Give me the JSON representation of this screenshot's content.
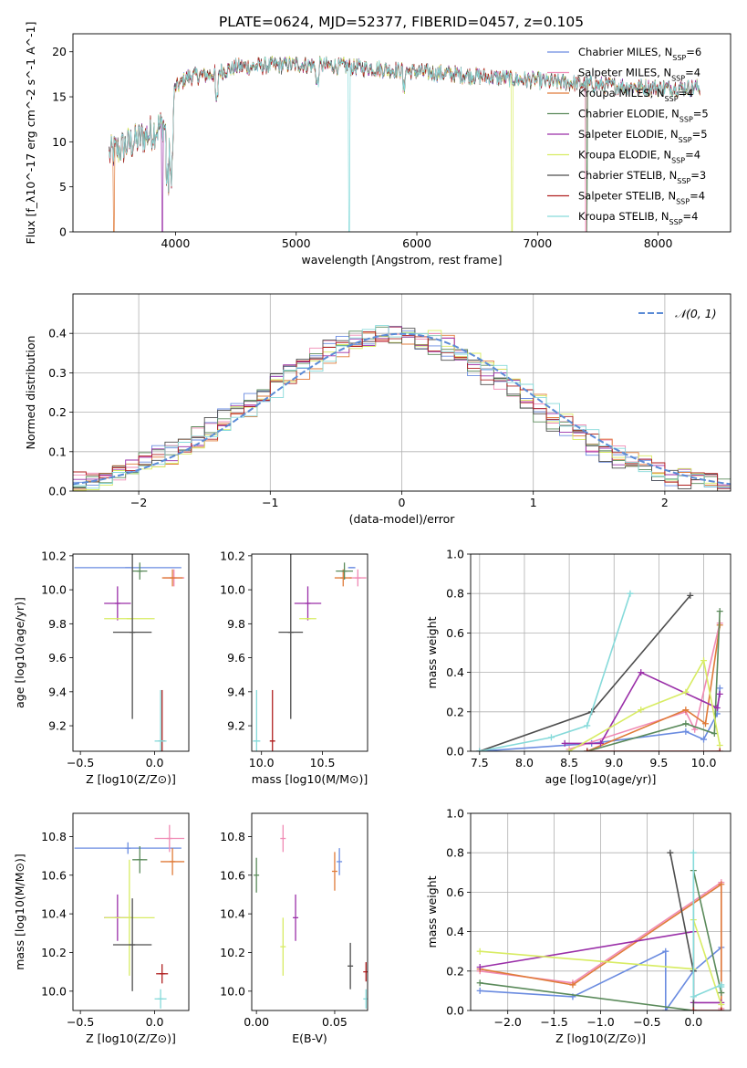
{
  "title": "PLATE=0624, MJD=52377, FIBERID=0457, z=0.105",
  "colors": [
    "#6a8be0",
    "#f08ab4",
    "#e07b39",
    "#5a8a5a",
    "#9a2fa8",
    "#d8ec63",
    "#4d4d4d",
    "#b02020",
    "#86dada"
  ],
  "chart_data": [
    {
      "type": "line",
      "panel": "spectrum",
      "xlabel": "wavelength [Angstrom, rest frame]",
      "ylabel": "Flux [f_λ10^-17 erg cm^-2 s^-1 A^-1]",
      "xlim": [
        3150,
        8600
      ],
      "ylim": [
        0,
        22
      ],
      "xticks": [
        4000,
        5000,
        6000,
        7000,
        8000
      ],
      "yticks": [
        0,
        5,
        10,
        15,
        20
      ],
      "grid": false,
      "legend_position": "top-right",
      "series": [
        {
          "name": "Chabrier MILES, N_SSP=6",
          "color": "#6a8be0"
        },
        {
          "name": "Salpeter MILES, N_SSP=4",
          "color": "#f08ab4"
        },
        {
          "name": "Kroupa MILES, N_SSP=4",
          "color": "#e07b39"
        },
        {
          "name": "Chabrier ELODIE, N_SSP=5",
          "color": "#5a8a5a"
        },
        {
          "name": "Salpeter ELODIE, N_SSP=5",
          "color": "#9a2fa8"
        },
        {
          "name": "Kroupa ELODIE, N_SSP=4",
          "color": "#d8ec63"
        },
        {
          "name": "Chabrier STELIB, N_SSP=3",
          "color": "#4d4d4d"
        },
        {
          "name": "Salpeter STELIB, N_SSP=4",
          "color": "#b02020"
        },
        {
          "name": "Kroupa STELIB, N_SSP=4",
          "color": "#86dada"
        }
      ],
      "continuum": [
        [
          3450,
          8.6
        ],
        [
          3650,
          10
        ],
        [
          3800,
          11
        ],
        [
          3900,
          12
        ],
        [
          3950,
          10
        ],
        [
          4000,
          16
        ],
        [
          4100,
          17.2
        ],
        [
          4300,
          17.5
        ],
        [
          4500,
          18.3
        ],
        [
          5000,
          18.6
        ],
        [
          5500,
          18.3
        ],
        [
          6000,
          17.8
        ],
        [
          6500,
          17.3
        ],
        [
          7000,
          16.8
        ],
        [
          7500,
          16.3
        ],
        [
          8000,
          16.0
        ],
        [
          8350,
          16.0
        ]
      ]
    },
    {
      "type": "line",
      "panel": "residual_histogram",
      "xlabel": "(data-model)/error",
      "ylabel": "Normed distribution",
      "xlim": [
        -2.5,
        2.5
      ],
      "ylim": [
        0,
        0.5
      ],
      "xticks": [
        -2,
        -1,
        0,
        1,
        2
      ],
      "yticks": [
        0.0,
        0.1,
        0.2,
        0.3,
        0.4
      ],
      "grid": true,
      "legend": "𝒩(0, 1)",
      "legend_position": "top-right",
      "gaussian": {
        "mean": 0,
        "sigma": 1
      }
    },
    {
      "type": "scatter",
      "panel": "age_vs_Z",
      "xlabel": "Z [log10(Z/Z⊙)]",
      "ylabel": "age [log10(age/yr)]",
      "xlim": [
        -0.55,
        0.23
      ],
      "ylim": [
        9.05,
        10.21
      ],
      "xticks": [
        -0.5,
        0.0
      ],
      "yticks": [
        9.2,
        9.4,
        9.6,
        9.8,
        10.0,
        10.2
      ],
      "points": [
        {
          "x": -0.18,
          "y": 10.13,
          "xerr": 0.36,
          "yerr": 0.0,
          "color": "#6a8be0"
        },
        {
          "x": 0.13,
          "y": 10.07,
          "xerr": 0.07,
          "yerr": 0.05,
          "color": "#f08ab4"
        },
        {
          "x": 0.12,
          "y": 10.07,
          "xerr": 0.07,
          "yerr": 0.05,
          "color": "#e07b39"
        },
        {
          "x": -0.1,
          "y": 10.11,
          "xerr": 0.05,
          "yerr": 0.05,
          "color": "#5a8a5a"
        },
        {
          "x": -0.25,
          "y": 9.92,
          "xerr": 0.09,
          "yerr": 0.1,
          "color": "#9a2fa8"
        },
        {
          "x": -0.17,
          "y": 9.83,
          "xerr": 0.17,
          "yerr": 0.0,
          "color": "#d8ec63"
        },
        {
          "x": -0.15,
          "y": 9.75,
          "xerr": 0.13,
          "yerr": 0.51,
          "color": "#4d4d4d"
        },
        {
          "x": 0.05,
          "y": 9.11,
          "xerr": 0.02,
          "yerr": 0.3,
          "color": "#b02020"
        },
        {
          "x": 0.04,
          "y": 9.11,
          "xerr": 0.04,
          "yerr": 0.3,
          "color": "#86dada"
        }
      ]
    },
    {
      "type": "scatter",
      "panel": "age_vs_mass",
      "xlabel": "mass [log10(M/M⊙)]",
      "ylabel": "",
      "xlim": [
        9.92,
        10.87
      ],
      "ylim": [
        9.05,
        10.21
      ],
      "xticks": [
        10.0,
        10.5
      ],
      "yticks": [
        9.2,
        9.4,
        9.6,
        9.8,
        10.0,
        10.2
      ],
      "points": [
        {
          "x": 10.74,
          "y": 10.13,
          "xerr": 0.03,
          "yerr": 0.0,
          "color": "#6a8be0"
        },
        {
          "x": 10.79,
          "y": 10.07,
          "xerr": 0.07,
          "yerr": 0.05,
          "color": "#f08ab4"
        },
        {
          "x": 10.67,
          "y": 10.07,
          "xerr": 0.07,
          "yerr": 0.05,
          "color": "#e07b39"
        },
        {
          "x": 10.68,
          "y": 10.11,
          "xerr": 0.07,
          "yerr": 0.05,
          "color": "#5a8a5a"
        },
        {
          "x": 10.38,
          "y": 9.92,
          "xerr": 0.11,
          "yerr": 0.1,
          "color": "#9a2fa8"
        },
        {
          "x": 10.38,
          "y": 9.83,
          "xerr": 0.07,
          "yerr": 0.0,
          "color": "#d8ec63"
        },
        {
          "x": 10.24,
          "y": 9.75,
          "xerr": 0.1,
          "yerr": 0.51,
          "color": "#4d4d4d"
        },
        {
          "x": 10.09,
          "y": 9.11,
          "xerr": 0.02,
          "yerr": 0.3,
          "color": "#b02020"
        },
        {
          "x": 9.96,
          "y": 9.11,
          "xerr": 0.03,
          "yerr": 0.3,
          "color": "#86dada"
        }
      ]
    },
    {
      "type": "line",
      "panel": "mass_weight_vs_age",
      "xlabel": "age [log10(age/yr)]",
      "ylabel": "mass weight",
      "xlim": [
        7.4,
        10.3
      ],
      "ylim": [
        0,
        1.0
      ],
      "xticks": [
        7.5,
        8.0,
        8.5,
        9.0,
        9.5,
        10.0
      ],
      "yticks": [
        0.0,
        0.2,
        0.4,
        0.6,
        0.8,
        1.0
      ],
      "grid": true,
      "series": [
        {
          "color": "#6a8be0",
          "x": [
            7.5,
            8.75,
            9.8,
            10.0,
            10.15,
            10.18
          ],
          "y": [
            0.0,
            0.04,
            0.1,
            0.06,
            0.19,
            0.32
          ]
        },
        {
          "color": "#f08ab4",
          "x": [
            8.5,
            9.8,
            9.9,
            10.18
          ],
          "y": [
            0.01,
            0.2,
            0.11,
            0.65
          ]
        },
        {
          "color": "#e07b39",
          "x": [
            8.7,
            9.8,
            10.02,
            10.18
          ],
          "y": [
            0.0,
            0.21,
            0.14,
            0.64
          ]
        },
        {
          "color": "#5a8a5a",
          "x": [
            8.7,
            9.8,
            10.12,
            10.18
          ],
          "y": [
            0.0,
            0.14,
            0.09,
            0.71
          ]
        },
        {
          "color": "#9a2fa8",
          "x": [
            8.45,
            8.85,
            9.3,
            10.15,
            10.18
          ],
          "y": [
            0.04,
            0.04,
            0.4,
            0.22,
            0.29
          ]
        },
        {
          "color": "#d8ec63",
          "x": [
            8.5,
            9.3,
            9.8,
            10.0,
            10.18
          ],
          "y": [
            0.0,
            0.21,
            0.3,
            0.46,
            0.03
          ]
        },
        {
          "color": "#4d4d4d",
          "x": [
            7.5,
            8.75,
            9.85
          ],
          "y": [
            0.0,
            0.2,
            0.79
          ]
        },
        {
          "color": "#b02020",
          "x": [
            8.7,
            10.18
          ],
          "y": [
            0.0,
            0.0
          ]
        },
        {
          "color": "#86dada",
          "x": [
            7.5,
            8.3,
            8.7,
            9.18
          ],
          "y": [
            0.0,
            0.07,
            0.13,
            0.8
          ]
        }
      ]
    },
    {
      "type": "scatter",
      "panel": "mass_vs_Z",
      "xlabel": "Z [log10(Z/Z⊙)]",
      "ylabel": "mass [log10(M/M⊙)]",
      "xlim": [
        -0.55,
        0.23
      ],
      "ylim": [
        9.9,
        10.92
      ],
      "xticks": [
        -0.5,
        0.0
      ],
      "yticks": [
        10.0,
        10.2,
        10.4,
        10.6,
        10.8
      ],
      "points": [
        {
          "x": -0.18,
          "y": 10.74,
          "xerr": 0.36,
          "yerr": 0.03,
          "color": "#6a8be0"
        },
        {
          "x": 0.1,
          "y": 10.79,
          "xerr": 0.1,
          "yerr": 0.07,
          "color": "#f08ab4"
        },
        {
          "x": 0.12,
          "y": 10.67,
          "xerr": 0.08,
          "yerr": 0.07,
          "color": "#e07b39"
        },
        {
          "x": -0.1,
          "y": 10.68,
          "xerr": 0.05,
          "yerr": 0.07,
          "color": "#5a8a5a"
        },
        {
          "x": -0.25,
          "y": 10.38,
          "xerr": 0.09,
          "yerr": 0.12,
          "color": "#9a2fa8"
        },
        {
          "x": -0.17,
          "y": 10.38,
          "xerr": 0.17,
          "yerr": 0.3,
          "color": "#d8ec63"
        },
        {
          "x": -0.15,
          "y": 10.24,
          "xerr": 0.13,
          "yerr": 0.24,
          "color": "#4d4d4d"
        },
        {
          "x": 0.05,
          "y": 10.09,
          "xerr": 0.04,
          "yerr": 0.05,
          "color": "#b02020"
        },
        {
          "x": 0.04,
          "y": 9.96,
          "xerr": 0.04,
          "yerr": 0.05,
          "color": "#86dada"
        }
      ]
    },
    {
      "type": "scatter",
      "panel": "mass_vs_EBV",
      "xlabel": "E(B-V)",
      "ylabel": "",
      "xlim": [
        -0.003,
        0.071
      ],
      "ylim": [
        9.9,
        10.92
      ],
      "xticks": [
        0.0,
        0.05
      ],
      "yticks": [
        10.0,
        10.2,
        10.4,
        10.6,
        10.8
      ],
      "points": [
        {
          "x": 0.053,
          "y": 10.67,
          "xerr": 0,
          "yerr": 0.07,
          "color": "#6a8be0"
        },
        {
          "x": 0.017,
          "y": 10.79,
          "xerr": 0,
          "yerr": 0.07,
          "color": "#f08ab4"
        },
        {
          "x": 0.05,
          "y": 10.62,
          "xerr": 0,
          "yerr": 0.1,
          "color": "#e07b39"
        },
        {
          "x": 0.0,
          "y": 10.6,
          "xerr": 0,
          "yerr": 0.09,
          "color": "#5a8a5a"
        },
        {
          "x": 0.025,
          "y": 10.38,
          "xerr": 0,
          "yerr": 0.12,
          "color": "#9a2fa8"
        },
        {
          "x": 0.017,
          "y": 10.23,
          "xerr": 0,
          "yerr": 0.15,
          "color": "#d8ec63"
        },
        {
          "x": 0.06,
          "y": 10.13,
          "xerr": 0,
          "yerr": 0.12,
          "color": "#4d4d4d"
        },
        {
          "x": 0.07,
          "y": 10.1,
          "xerr": 0,
          "yerr": 0.05,
          "color": "#b02020"
        },
        {
          "x": 0.07,
          "y": 9.96,
          "xerr": 0,
          "yerr": 0.05,
          "color": "#86dada"
        }
      ]
    },
    {
      "type": "line",
      "panel": "mass_weight_vs_Z",
      "xlabel": "Z [log10(Z/Z⊙)]",
      "ylabel": "mass weight",
      "xlim": [
        -2.4,
        0.4
      ],
      "ylim": [
        0,
        1.0
      ],
      "xticks": [
        -2.0,
        -1.5,
        -1.0,
        -0.5,
        0.0
      ],
      "yticks": [
        0.0,
        0.2,
        0.4,
        0.6,
        0.8,
        1.0
      ],
      "grid": true,
      "series": [
        {
          "color": "#6a8be0",
          "x": [
            -2.3,
            -1.3,
            -0.3,
            -0.3,
            0.0,
            0.3
          ],
          "y": [
            0.1,
            0.07,
            0.3,
            0.0,
            0.2,
            0.32
          ]
        },
        {
          "color": "#f08ab4",
          "x": [
            -2.3,
            -1.3,
            0.3,
            0.3
          ],
          "y": [
            0.2,
            0.14,
            0.65,
            0.01
          ]
        },
        {
          "color": "#e07b39",
          "x": [
            -2.3,
            -1.3,
            0.3,
            0.3
          ],
          "y": [
            0.21,
            0.13,
            0.64,
            0.0
          ]
        },
        {
          "color": "#5a8a5a",
          "x": [
            -2.3,
            0.0,
            0.0,
            0.3
          ],
          "y": [
            0.14,
            0.0,
            0.71,
            0.09
          ]
        },
        {
          "color": "#9a2fa8",
          "x": [
            -2.3,
            0.0,
            0.0,
            0.3
          ],
          "y": [
            0.22,
            0.4,
            0.04,
            0.04
          ]
        },
        {
          "color": "#d8ec63",
          "x": [
            -2.3,
            0.0,
            0.0,
            0.3
          ],
          "y": [
            0.3,
            0.21,
            0.46,
            0.03
          ]
        },
        {
          "color": "#4d4d4d",
          "x": [
            -0.25,
            0.0,
            0.0
          ],
          "y": [
            0.8,
            0.2,
            0.0
          ]
        },
        {
          "color": "#b02020",
          "x": [
            0.0,
            0.3
          ],
          "y": [
            0.0,
            0.0
          ]
        },
        {
          "color": "#86dada",
          "x": [
            0.0,
            0.0,
            0.3,
            0.3
          ],
          "y": [
            0.8,
            0.07,
            0.13,
            0.12
          ]
        }
      ]
    }
  ]
}
